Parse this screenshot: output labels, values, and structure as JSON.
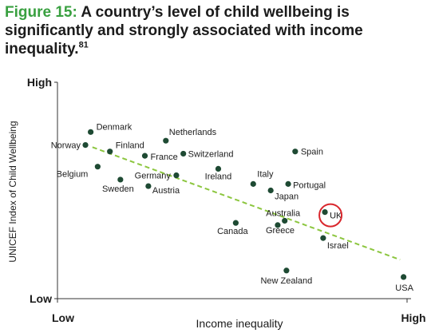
{
  "title": {
    "lead": "Figure 15:",
    "text": " A country’s level of child wellbeing is significantly and strongly associated with income inequality.",
    "footnote": "81"
  },
  "colors": {
    "accent": "#39a040",
    "point": "#1e4a33",
    "trend": "#8cc63f",
    "highlight": "#d9262c",
    "text": "#1b1b1b"
  },
  "chart_data": {
    "type": "scatter",
    "xlabel": "Income inequality",
    "ylabel": "UNICEF Index of Child Wellbeing",
    "x_ticks": [
      "Low",
      "High"
    ],
    "y_ticks": [
      "High",
      "Low"
    ],
    "xlim": [
      0,
      100
    ],
    "ylim": [
      0,
      100
    ],
    "trendline": {
      "x": [
        10,
        98
      ],
      "y": [
        70,
        18
      ]
    },
    "highlight": "UK",
    "points": [
      {
        "label": "Denmark",
        "x": 9.5,
        "y": 77
      },
      {
        "label": "Norway",
        "x": 8,
        "y": 71
      },
      {
        "label": "Finland",
        "x": 15,
        "y": 68
      },
      {
        "label": "Belgium",
        "x": 11.5,
        "y": 61
      },
      {
        "label": "Sweden",
        "x": 18,
        "y": 55
      },
      {
        "label": "Netherlands",
        "x": 31,
        "y": 73
      },
      {
        "label": "France",
        "x": 25,
        "y": 66
      },
      {
        "label": "Switzerland",
        "x": 36,
        "y": 67
      },
      {
        "label": "Germany",
        "x": 34,
        "y": 57
      },
      {
        "label": "Austria",
        "x": 26,
        "y": 52
      },
      {
        "label": "Ireland",
        "x": 46,
        "y": 60
      },
      {
        "label": "Spain",
        "x": 68,
        "y": 68
      },
      {
        "label": "Italy",
        "x": 56,
        "y": 53
      },
      {
        "label": "Portugal",
        "x": 66,
        "y": 53
      },
      {
        "label": "Japan",
        "x": 61,
        "y": 50
      },
      {
        "label": "Australia",
        "x": 65,
        "y": 36
      },
      {
        "label": "Canada",
        "x": 51,
        "y": 35
      },
      {
        "label": "Greece",
        "x": 63,
        "y": 34
      },
      {
        "label": "UK",
        "x": 76.5,
        "y": 40
      },
      {
        "label": "Israel",
        "x": 76,
        "y": 28
      },
      {
        "label": "New Zealand",
        "x": 65.5,
        "y": 13
      },
      {
        "label": "USA",
        "x": 99,
        "y": 10
      }
    ]
  }
}
